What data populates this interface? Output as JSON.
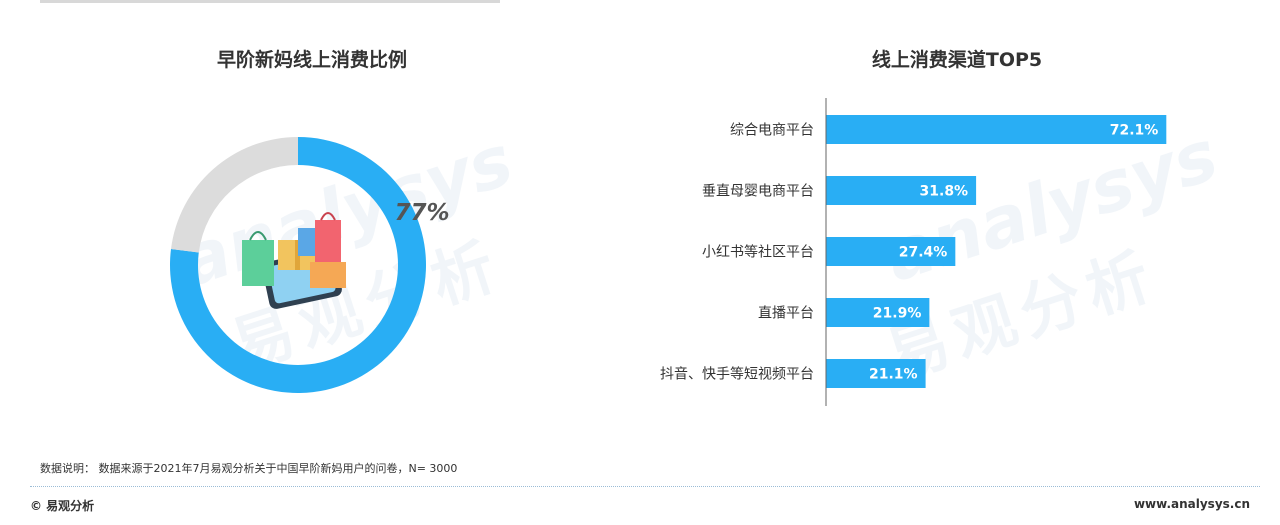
{
  "donut": {
    "title": "早阶新妈线上消费比例",
    "label": "77%"
  },
  "watermark": {
    "en": "analysys",
    "cn": "易观分析"
  },
  "chart_data": [
    {
      "type": "pie",
      "title": "早阶新妈线上消费比例",
      "slices": [
        {
          "label": "线上消费",
          "value": 77,
          "color": "#29aef4"
        },
        {
          "label": "",
          "value": 23,
          "color": "#dcdcdc"
        }
      ],
      "data_labels": [
        "77%"
      ]
    },
    {
      "type": "bar",
      "orientation": "horizontal",
      "title": "线上消费渠道TOP5",
      "categories": [
        "综合电商平台",
        "垂直母婴电商平台",
        "小红书等社区平台",
        "直播平台",
        "抖音、快手等短视频平台"
      ],
      "values": [
        72.1,
        31.8,
        27.4,
        21.9,
        21.1
      ],
      "value_labels": [
        "72.1%",
        "31.8%",
        "27.4%",
        "21.9%",
        "21.1%"
      ],
      "xlim": [
        0,
        100
      ],
      "grid": false,
      "color": "#29aef4"
    }
  ],
  "notes": {
    "source": "数据说明： 数据来源于2021年7月易观分析关于中国早阶新妈用户的问卷，N= 3000"
  },
  "footer": {
    "left": "© 易观分析",
    "right": "www.analysys.cn"
  }
}
